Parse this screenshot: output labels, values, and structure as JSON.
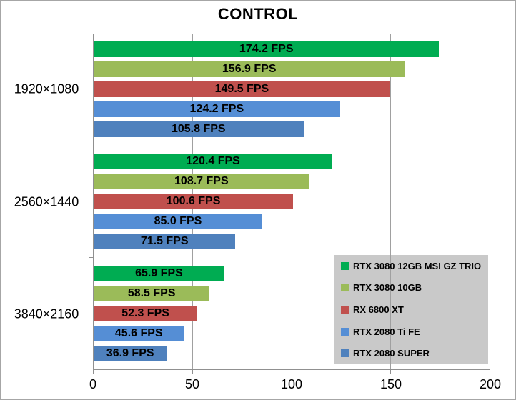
{
  "chart_data": {
    "type": "bar",
    "orientation": "horizontal",
    "title": "CONTROL",
    "categories": [
      "1920×1080",
      "2560×1440",
      "3840×2160"
    ],
    "series": [
      {
        "name": "RTX 3080 12GB MSI GZ TRIO",
        "color": "#00AC52",
        "values": [
          174.2,
          120.4,
          65.9
        ],
        "labels": [
          "174.2 FPS",
          "120.4 FPS",
          "65.9 FPS"
        ]
      },
      {
        "name": "RTX 3080 10GB",
        "color": "#9BBB59",
        "values": [
          156.9,
          108.7,
          58.5
        ],
        "labels": [
          "156.9 FPS",
          "108.7 FPS",
          "58.5 FPS"
        ]
      },
      {
        "name": "RX 6800 XT",
        "color": "#C0504D",
        "values": [
          149.5,
          100.6,
          52.3
        ],
        "labels": [
          "149.5 FPS",
          "100.6 FPS",
          "52.3 FPS"
        ]
      },
      {
        "name": "RTX 2080 Ti FE",
        "color": "#558ED5",
        "values": [
          124.2,
          85.0,
          45.6
        ],
        "labels": [
          "124.2 FPS",
          "85.0 FPS",
          "45.6 FPS"
        ]
      },
      {
        "name": "RTX 2080 SUPER",
        "color": "#4F81BD",
        "values": [
          105.8,
          71.5,
          36.9
        ],
        "labels": [
          "105.8 FPS",
          "71.5 FPS",
          "36.9 FPS"
        ]
      }
    ],
    "xlim": [
      0,
      200
    ],
    "x_ticks": [
      0,
      50,
      100,
      150,
      200
    ],
    "x_tick_labels": [
      "0",
      "50",
      "100",
      "150",
      "200"
    ],
    "grid": true,
    "legend_position": "inside-bottom-right"
  },
  "style": {
    "legend_bg": "#C9C9C9",
    "axis_color": "#909090",
    "gridline_color": "#A0A0A0",
    "text_color": "#000000"
  }
}
